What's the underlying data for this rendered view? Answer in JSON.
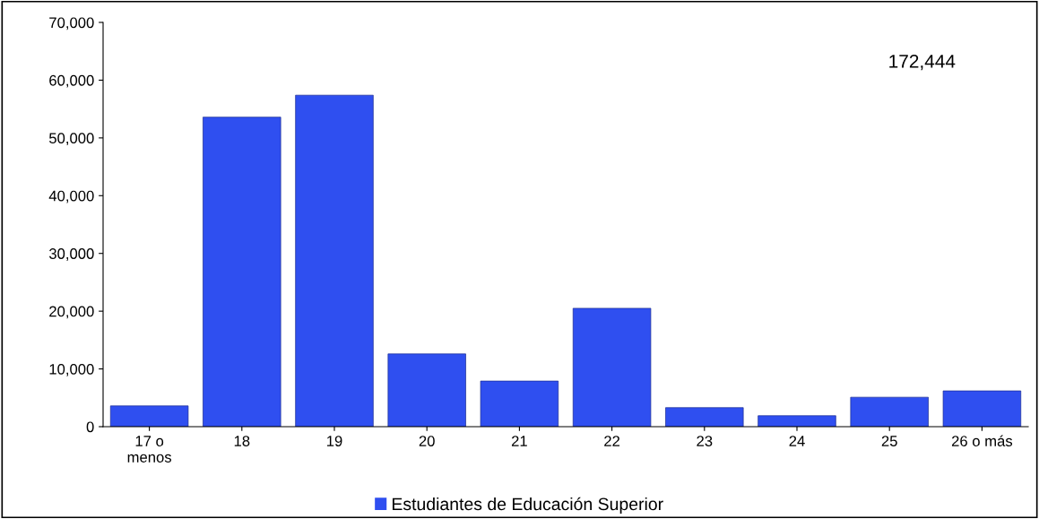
{
  "chart_data": {
    "type": "bar",
    "categories": [
      "17 o\nmenos",
      "18",
      "19",
      "20",
      "21",
      "22",
      "23",
      "24",
      "25",
      "26 o más"
    ],
    "series": [
      {
        "name": "Estudiantes de Educación Superior",
        "color": "#2f4ff0",
        "values": [
          3600,
          53600,
          57400,
          12600,
          7900,
          20500,
          3300,
          1900,
          5100,
          6200
        ]
      }
    ],
    "ylim": [
      0,
      70000
    ],
    "yticks": [
      {
        "value": 0,
        "label": "0"
      },
      {
        "value": 10000,
        "label": "10,000"
      },
      {
        "value": 20000,
        "label": "20,000"
      },
      {
        "value": 30000,
        "label": "30,000"
      },
      {
        "value": 40000,
        "label": "40,000"
      },
      {
        "value": 50000,
        "label": "50,000"
      },
      {
        "value": 60000,
        "label": "60,000"
      },
      {
        "value": 70000,
        "label": "70,000"
      }
    ],
    "annotations": [
      "172,444"
    ],
    "grid": false,
    "legend": "bottom"
  }
}
